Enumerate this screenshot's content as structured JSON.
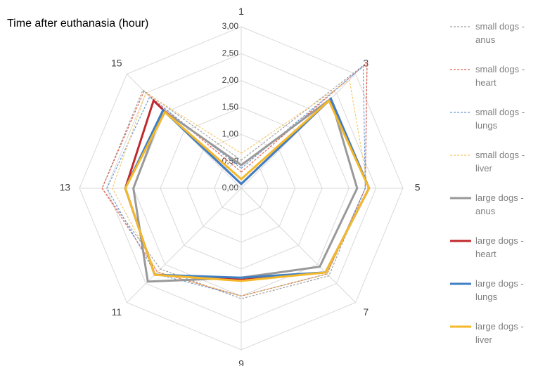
{
  "chart_data": {
    "type": "radar",
    "title": "Time after euthanasia (hour)",
    "categories": [
      "1",
      "3",
      "5",
      "7",
      "9",
      "11",
      "13",
      "15"
    ],
    "ylim": [
      0,
      3
    ],
    "yticks": [
      {
        "value": 0,
        "label": "0,00"
      },
      {
        "value": 0.5,
        "label": "0,50"
      },
      {
        "value": 1,
        "label": "1,00"
      },
      {
        "value": 1.5,
        "label": "1,50"
      },
      {
        "value": 2,
        "label": "2,00"
      },
      {
        "value": 2.5,
        "label": "2,50"
      },
      {
        "value": 3,
        "label": "3,00"
      }
    ],
    "grid": true,
    "legend": "right",
    "series": [
      {
        "name": "small dogs - anus",
        "color": "#a0a0a0",
        "dashed": true,
        "values": [
          0.52,
          3.3,
          2.3,
          2.3,
          2.05,
          2.12,
          2.58,
          2.58
        ]
      },
      {
        "name": "small dogs - heart",
        "color": "#e8604c",
        "dashed": true,
        "values": [
          0.3,
          3.3,
          2.3,
          2.25,
          2.0,
          2.2,
          2.58,
          2.55
        ]
      },
      {
        "name": "small dogs - lungs",
        "color": "#6a9ad6",
        "dashed": true,
        "values": [
          0.37,
          3.2,
          2.3,
          2.25,
          2.0,
          2.25,
          2.49,
          2.4
        ]
      },
      {
        "name": "small dogs - liver",
        "color": "#f6c86a",
        "dashed": true,
        "values": [
          0.65,
          2.84,
          2.35,
          2.25,
          2.0,
          2.2,
          2.39,
          2.5
        ]
      },
      {
        "name": "large dogs - anus",
        "color": "#999999",
        "dashed": false,
        "values": [
          0.43,
          2.35,
          2.15,
          2.06,
          1.66,
          2.45,
          2.0,
          2.05
        ]
      },
      {
        "name": "large dogs - heart",
        "color": "#c0282d",
        "dashed": false,
        "values": [
          0.08,
          2.35,
          2.37,
          2.21,
          1.7,
          2.27,
          2.15,
          2.3
        ]
      },
      {
        "name": "large dogs - lungs",
        "color": "#3f7fc4",
        "dashed": false,
        "values": [
          0.08,
          2.35,
          2.37,
          2.21,
          1.66,
          2.27,
          2.15,
          2.05
        ]
      },
      {
        "name": "large dogs - liver",
        "color": "#f5b82a",
        "dashed": false,
        "values": [
          0.17,
          2.3,
          2.37,
          2.21,
          1.72,
          2.27,
          2.15,
          2.0
        ]
      }
    ]
  }
}
